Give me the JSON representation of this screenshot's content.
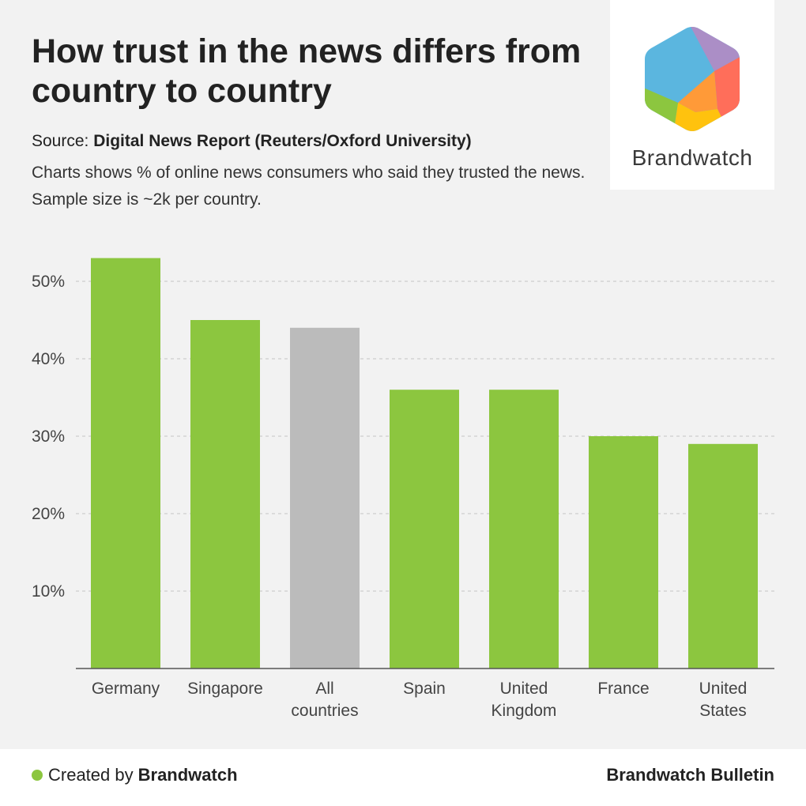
{
  "header": {
    "title": "How trust in the news differs from country to country",
    "source_label": "Source:",
    "source_value": "Digital News Report (Reuters/Oxford University)",
    "note": "Charts shows % of online news consumers who said they trusted the news. Sample size is ~2k per country."
  },
  "logo": {
    "icon": "brandwatch-hexagon-logo",
    "wordmark": "Brandwatch"
  },
  "chart_data": {
    "type": "bar",
    "categories": [
      [
        "Germany"
      ],
      [
        "Singapore"
      ],
      [
        "All",
        "countries"
      ],
      [
        "Spain"
      ],
      [
        "United",
        "Kingdom"
      ],
      [
        "France"
      ],
      [
        "United",
        "States"
      ]
    ],
    "values": [
      53,
      45,
      44,
      36,
      36,
      30,
      29
    ],
    "highlight_index": 2,
    "bar_color": "#8cc63f",
    "highlight_color": "#bbbbbb",
    "ylim": [
      0,
      55
    ],
    "yticks": [
      10,
      20,
      30,
      40,
      50
    ],
    "ytick_labels": [
      "10%",
      "20%",
      "30%",
      "40%",
      "50%"
    ],
    "grid": true
  },
  "footer": {
    "created_by": "Created by",
    "brand": "Brandwatch",
    "publication": "Brandwatch Bulletin"
  }
}
